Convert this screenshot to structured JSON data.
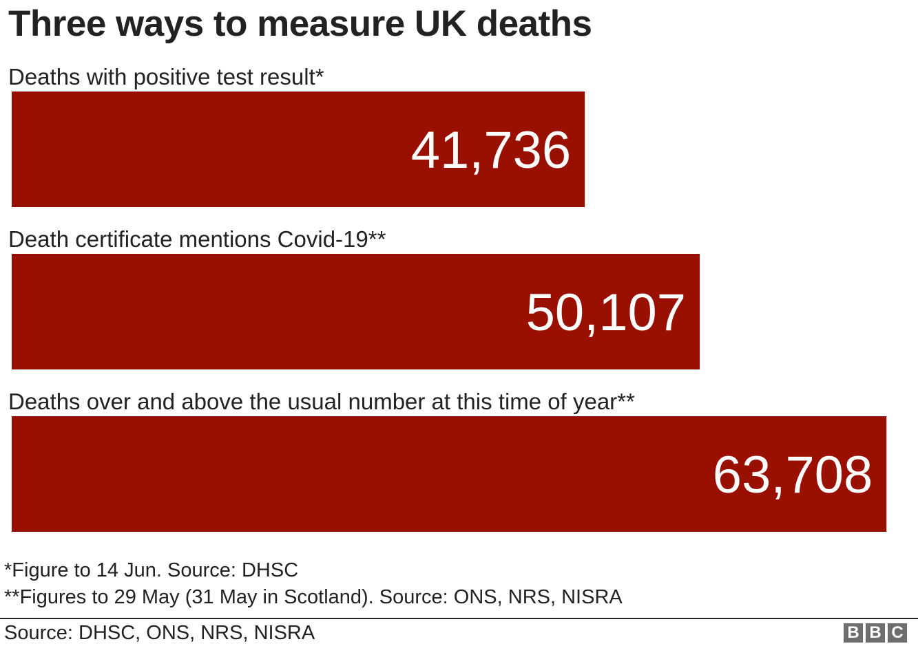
{
  "title": "Three ways to measure UK deaths",
  "chart_data": {
    "type": "bar",
    "orientation": "horizontal",
    "categories": [
      "Deaths with positive test result*",
      "Death certificate mentions Covid-19**",
      "Deaths over and above the usual number at this time of year**"
    ],
    "values": [
      41736,
      50107,
      63708
    ],
    "value_labels": [
      "41,736",
      "50,107",
      "63,708"
    ],
    "title": "Three ways to measure UK deaths",
    "xlabel": "",
    "ylabel": "",
    "xlim": [
      0,
      65200
    ],
    "grid": false,
    "legend": "none",
    "bar_color": "#990f00",
    "value_label_color": "#ffffff"
  },
  "footnotes": [
    "*Figure to 14 Jun. Source: DHSC",
    "**Figures to 29 May (31 May in Scotland). Source: ONS, NRS, NISRA"
  ],
  "source": "Source: DHSC, ONS, NRS, NISRA",
  "logo": [
    "B",
    "B",
    "C"
  ]
}
